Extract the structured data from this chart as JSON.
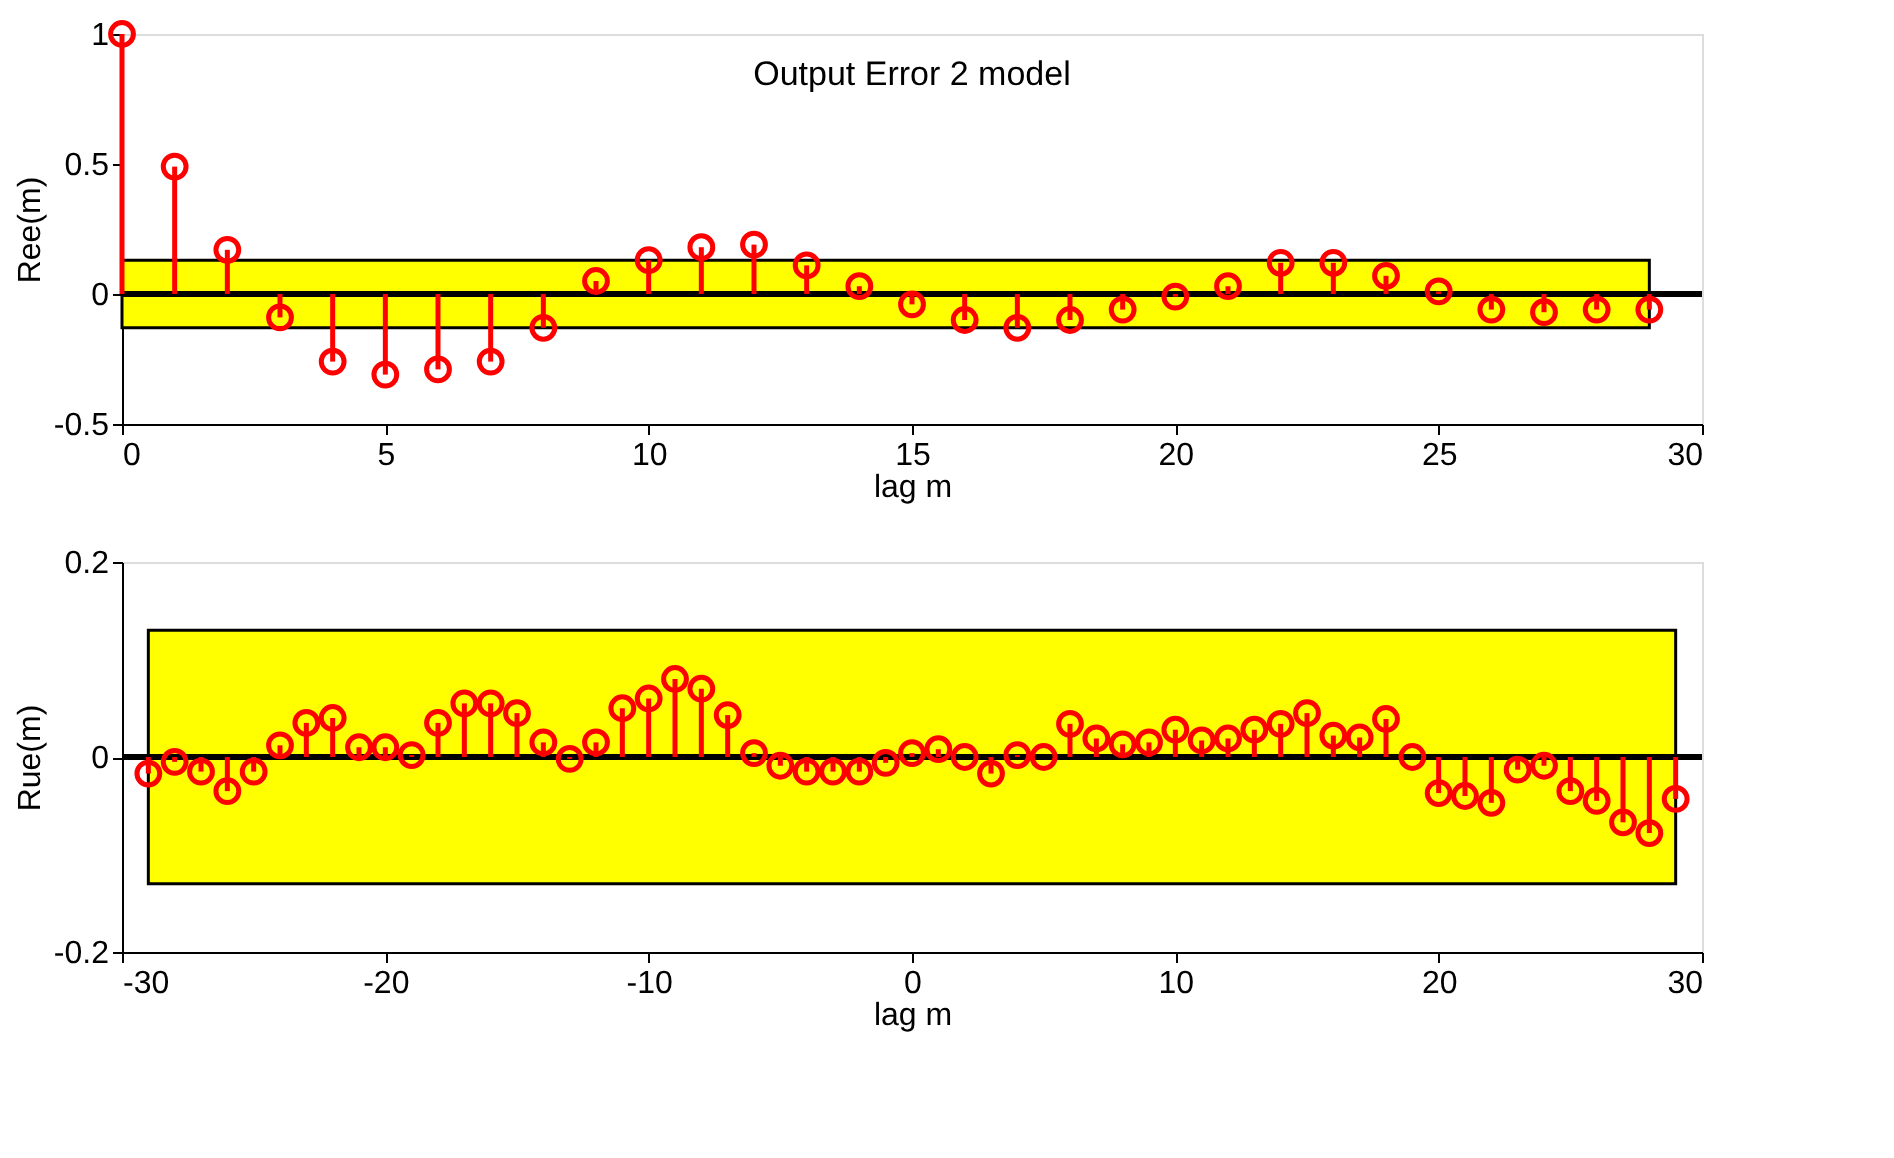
{
  "chart_data": [
    {
      "type": "lollipop",
      "title": "Output Error 2 model",
      "xlabel": "lag m",
      "ylabel": "Ree(m)",
      "x": [
        0,
        1,
        2,
        3,
        4,
        5,
        6,
        7,
        8,
        9,
        10,
        11,
        12,
        13,
        14,
        15,
        16,
        17,
        18,
        19,
        20,
        21,
        22,
        23,
        24,
        25,
        26,
        27,
        28,
        29
      ],
      "series": [
        {
          "color": "#ff0000",
          "values": [
            1,
            0.49,
            0.17,
            -0.09,
            -0.26,
            -0.31,
            -0.29,
            -0.26,
            -0.13,
            0.05,
            0.13,
            0.18,
            0.19,
            0.11,
            0.03,
            -0.04,
            -0.1,
            -0.13,
            -0.1,
            -0.06,
            -0.01,
            0.03,
            0.12,
            0.12,
            0.07,
            0.01,
            -0.06,
            -0.07,
            -0.06,
            -0.06
          ]
        }
      ],
      "xlim": [
        0,
        30
      ],
      "xticks": [
        0,
        5,
        10,
        15,
        20,
        25,
        30
      ],
      "ylim": [
        -0.5,
        1
      ],
      "yticks": [
        -0.5,
        0,
        0.5,
        1
      ],
      "bands": [
        {
          "axis": "y",
          "from": -0.13,
          "to": 0.13,
          "color": "#ffff00"
        }
      ],
      "ref_lines": [
        {
          "axis": "y",
          "value": 0,
          "color": "#000000"
        }
      ],
      "marker": "circle",
      "grid": false
    },
    {
      "type": "lollipop",
      "xlabel": "lag m",
      "ylabel": "Rue(m)",
      "x": [
        -29,
        -28,
        -27,
        -26,
        -25,
        -24,
        -23,
        -22,
        -21,
        -20,
        -19,
        -18,
        -17,
        -16,
        -15,
        -14,
        -13,
        -12,
        -11,
        -10,
        -9,
        -8,
        -7,
        -6,
        -5,
        -4,
        -3,
        -2,
        -1,
        0,
        1,
        2,
        3,
        4,
        5,
        6,
        7,
        8,
        9,
        10,
        11,
        12,
        13,
        14,
        15,
        16,
        17,
        18,
        19,
        20,
        21,
        22,
        23,
        24,
        25,
        26,
        27,
        28,
        29
      ],
      "series": [
        {
          "color": "#ff0000",
          "values": [
            -0.017,
            -0.005,
            -0.015,
            -0.035,
            -0.015,
            0.012,
            0.035,
            0.04,
            0.01,
            0.01,
            0.002,
            0.035,
            0.055,
            0.055,
            0.045,
            0.015,
            -0.002,
            0.015,
            0.05,
            0.06,
            0.08,
            0.07,
            0.043,
            0.004,
            -0.009,
            -0.015,
            -0.015,
            -0.015,
            -0.006,
            0.004,
            0.008,
            0,
            -0.017,
            0.002,
            0,
            0.034,
            0.019,
            0.013,
            0.015,
            0.028,
            0.017,
            0.019,
            0.028,
            0.034,
            0.045,
            0.022,
            0.02,
            0.039,
            0,
            -0.037,
            -0.04,
            -0.047,
            -0.013,
            -0.009,
            -0.035,
            -0.045,
            -0.067,
            -0.078,
            -0.043
          ]
        }
      ],
      "xlim": [
        -30,
        30
      ],
      "xticks": [
        -30,
        -20,
        -10,
        0,
        10,
        20,
        30
      ],
      "ylim": [
        -0.2,
        0.2
      ],
      "yticks": [
        -0.2,
        0,
        0.2
      ],
      "bands": [
        {
          "axis": "y",
          "from": -0.13,
          "to": 0.13,
          "color": "#ffff00"
        }
      ],
      "ref_lines": [
        {
          "axis": "y",
          "value": 0,
          "color": "#000000"
        }
      ],
      "marker": "circle",
      "grid": false
    }
  ]
}
